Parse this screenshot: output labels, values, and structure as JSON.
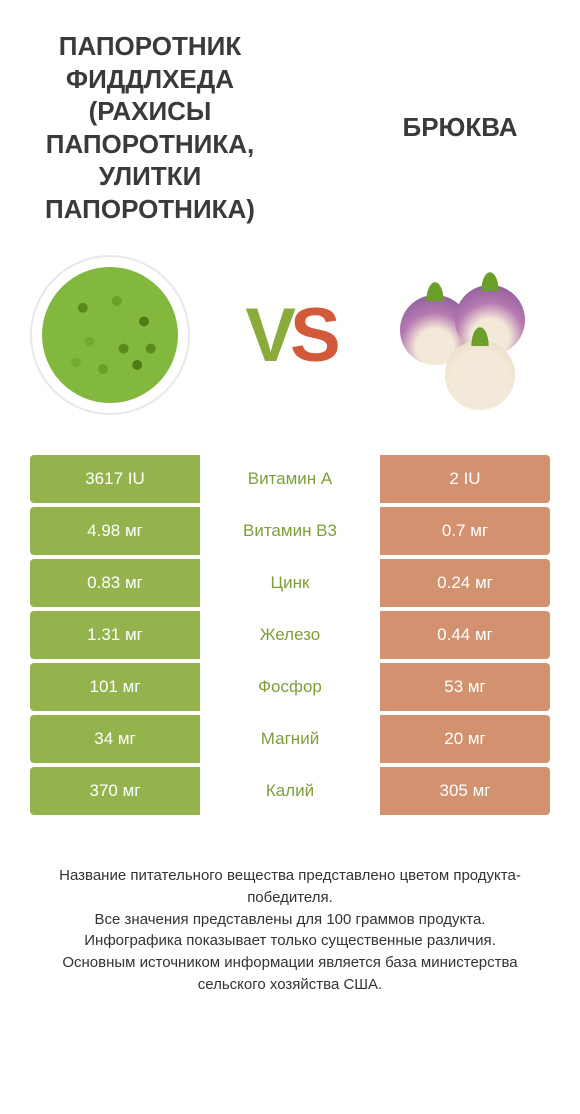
{
  "header": {
    "left_title": "ПАПОРОТНИК ФИДДЛХЕДА (РАХИСЫ ПАПОРОТНИКА, УЛИТКИ ПАПОРОТНИКА)",
    "right_title": "БРЮКВА",
    "vs_v": "V",
    "vs_s": "S"
  },
  "colors": {
    "winner_bg": "#95b34c",
    "loser_bg": "#d2926f",
    "nutrient_winner_text": "#7f9e3a",
    "nutrient_loser_text": "#c5815a"
  },
  "rows": [
    {
      "nutrient": "Витамин A",
      "left": "3617 IU",
      "right": "2 IU",
      "winner": "left"
    },
    {
      "nutrient": "Витамин B3",
      "left": "4.98 мг",
      "right": "0.7 мг",
      "winner": "left"
    },
    {
      "nutrient": "Цинк",
      "left": "0.83 мг",
      "right": "0.24 мг",
      "winner": "left"
    },
    {
      "nutrient": "Железо",
      "left": "1.31 мг",
      "right": "0.44 мг",
      "winner": "left"
    },
    {
      "nutrient": "Фосфор",
      "left": "101 мг",
      "right": "53 мг",
      "winner": "left"
    },
    {
      "nutrient": "Магний",
      "left": "34 мг",
      "right": "20 мг",
      "winner": "left"
    },
    {
      "nutrient": "Калий",
      "left": "370 мг",
      "right": "305 мг",
      "winner": "left"
    }
  ],
  "footer": {
    "line1": "Название питательного вещества представлено цветом продукта-победителя.",
    "line2": "Все значения представлены для 100 граммов продукта.",
    "line3": "Инфографика показывает только существенные различия.",
    "line4": "Основным источником информации является база министерства сельского хозяйства США."
  }
}
